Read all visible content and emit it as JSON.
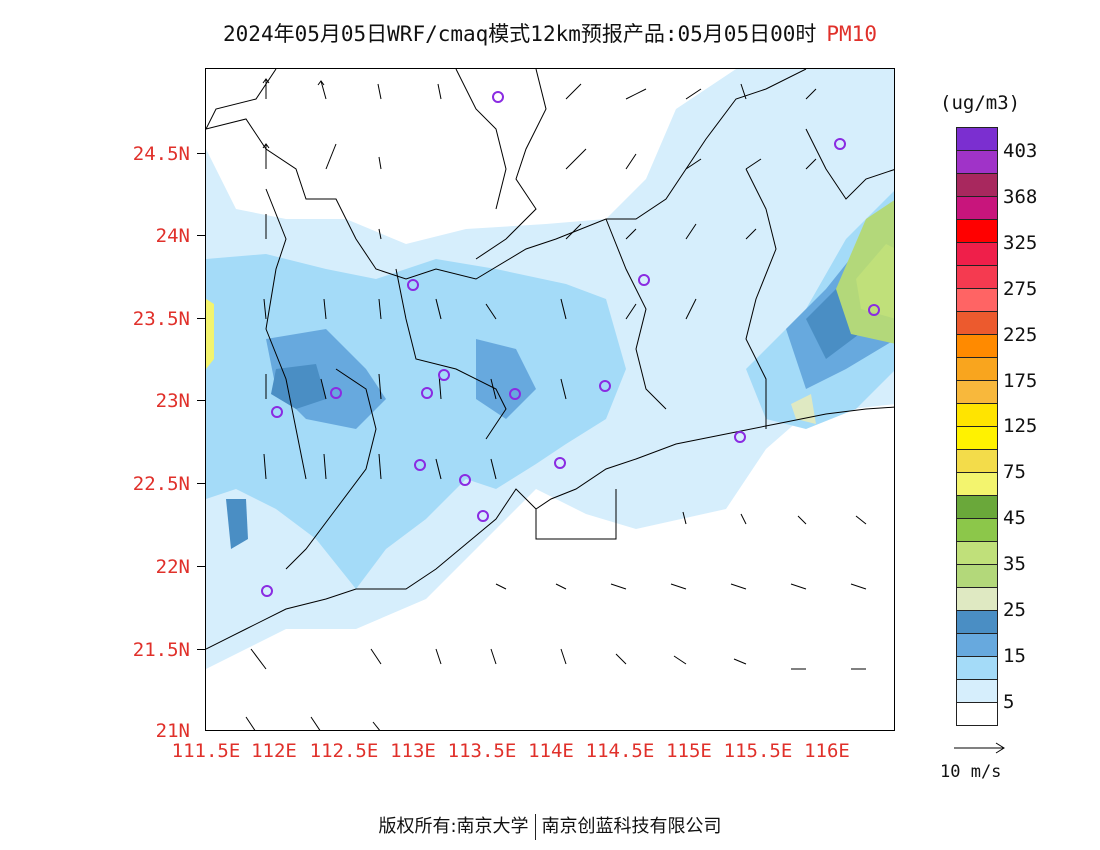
{
  "title": "2024年05月05日WRF/cmaq模式12km预报产品:05月05日00时",
  "pollutant": "PM10",
  "lat_labels": [
    "24.5N",
    "24N",
    "23.5N",
    "23N",
    "22.5N",
    "22N",
    "21.5N",
    "21N"
  ],
  "lon_labels": [
    "111.5E",
    "112E",
    "112.5E",
    "113E",
    "113.5E",
    "114E",
    "114.5E",
    "115E",
    "115.5E",
    "116E"
  ],
  "legend": {
    "unit": "(ug/m3)",
    "labels": [
      "403",
      "368",
      "325",
      "275",
      "225",
      "175",
      "125",
      "75",
      "45",
      "35",
      "25",
      "15",
      "5"
    ],
    "colors": [
      "#7b2fd0",
      "#a033c8",
      "#a8285e",
      "#c8157c",
      "#ff0000",
      "#ef1f4a",
      "#f53a50",
      "#ff6464",
      "#ec5a2e",
      "#ff8a00",
      "#f9a51e",
      "#f8b83c",
      "#ffe400",
      "#fff200",
      "#f3dc4a",
      "#f3f46e",
      "#6aa83a",
      "#8cc74a",
      "#c0e07a",
      "#b3d87a",
      "#dfe9c2",
      "#4a8ec4",
      "#67a9de",
      "#a4dbf8",
      "#d6eefc",
      "#ffffff"
    ]
  },
  "wind_key_label": "10 m/s",
  "footer": {
    "left": "版权所有:南京大学",
    "right": "南京创蓝科技有限公司"
  },
  "colors": {
    "axis_label": "#e0302a",
    "station_marker": "#8a2be2"
  }
}
